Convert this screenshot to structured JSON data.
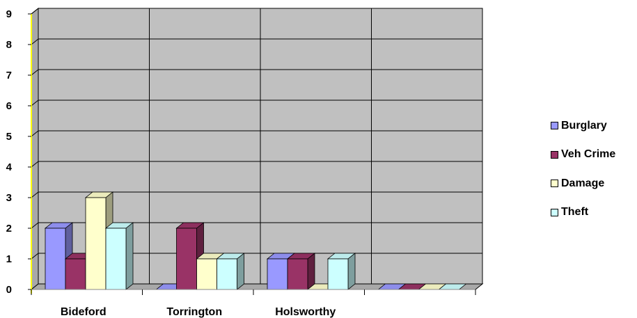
{
  "chart_data": {
    "type": "bar",
    "style": "3d-clustered-column",
    "categories": [
      "Bideford",
      "Torrington",
      "Holsworthy",
      ""
    ],
    "series": [
      {
        "name": "Burglary",
        "values": [
          2,
          0,
          1,
          0
        ],
        "color": "#9999FF"
      },
      {
        "name": "Veh Crime",
        "values": [
          1,
          2,
          1,
          0
        ],
        "color": "#993366"
      },
      {
        "name": "Damage",
        "values": [
          3,
          1,
          0,
          0
        ],
        "color": "#FFFFCC"
      },
      {
        "name": "Theft",
        "values": [
          2,
          1,
          1,
          0
        ],
        "color": "#CCFFFF"
      }
    ],
    "yticks": [
      "0",
      "1",
      "2",
      "3",
      "4",
      "5",
      "6",
      "7",
      "8",
      "9"
    ],
    "ylim": [
      0,
      9
    ],
    "grid": true,
    "legend_position": "right",
    "plot_color": "#C0C0C0",
    "axis_color": "#FFFF00"
  }
}
